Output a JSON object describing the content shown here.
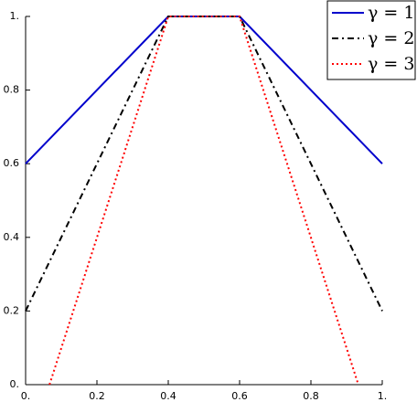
{
  "chart_data": {
    "type": "line",
    "series": [
      {
        "name": "γ = 1",
        "color": "#0000cc",
        "style": "solid",
        "x": [
          0,
          0.4,
          0.6,
          1
        ],
        "values": [
          0.6,
          1,
          1,
          0.6
        ]
      },
      {
        "name": "γ = 2",
        "color": "#000000",
        "style": "dashdot",
        "x": [
          0,
          0.4,
          0.6,
          1
        ],
        "values": [
          0.2,
          1,
          1,
          0.2
        ]
      },
      {
        "name": "γ = 3",
        "color": "#ff0000",
        "style": "dotted",
        "x": [
          0.067,
          0.4,
          0.6,
          0.933
        ],
        "values": [
          0,
          1,
          1,
          0
        ]
      }
    ],
    "xlim": [
      0,
      1
    ],
    "ylim": [
      0,
      1
    ],
    "xticks": [
      {
        "value": 0,
        "label": "0."
      },
      0.2,
      0.4,
      0.6,
      0.8,
      {
        "value": 1,
        "label": "1."
      }
    ],
    "yticks": [
      {
        "value": 0,
        "label": "0."
      },
      0.2,
      0.4,
      0.6,
      0.8,
      {
        "value": 1,
        "label": "1."
      }
    ],
    "legend": "upper right",
    "grid": false
  }
}
